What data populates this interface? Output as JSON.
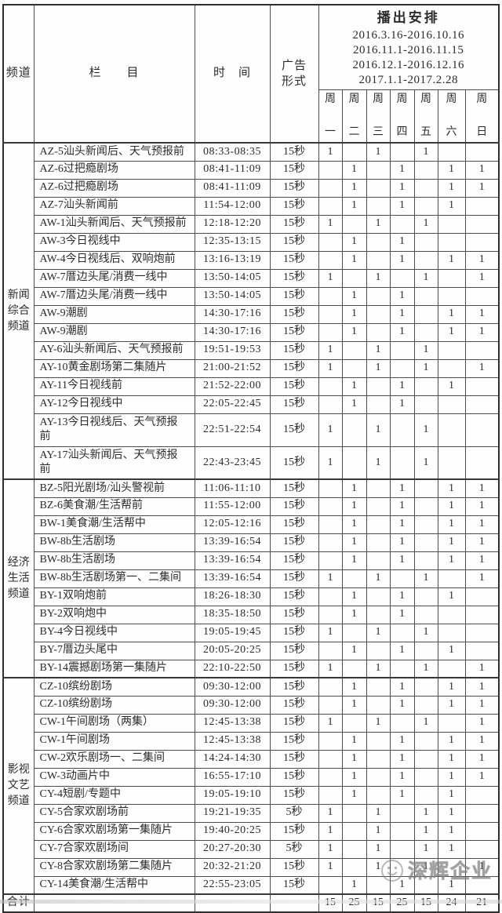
{
  "header": {
    "channel": "频道",
    "program": "栏　　目",
    "time": "时　间",
    "ad1": "广告",
    "ad2": "形式",
    "schedule_title": "播出安排",
    "dates": [
      "2016.3.16-2016.10.16",
      "2016.11.1-2016.11.15",
      "2016.12.1-2016.12.16",
      "2017.1.1-2017.2.28"
    ],
    "week_char": "周",
    "days": [
      "一",
      "二",
      "三",
      "四",
      "五",
      "六",
      "日"
    ]
  },
  "groups": [
    {
      "channel": "新闻综合频道",
      "rows": [
        {
          "program": "AZ-5汕头新闻后、天气预报前",
          "time": "08:33-08:35",
          "ad": "15秒",
          "days": [
            "1",
            "",
            "1",
            "",
            "1",
            "",
            ""
          ]
        },
        {
          "program": "AZ-6过把瘾剧场",
          "time": "08:41-11:09",
          "ad": "15秒",
          "days": [
            "",
            "1",
            "",
            "1",
            "",
            "1",
            "1"
          ]
        },
        {
          "program": "AZ-6过把瘾剧场",
          "time": "08:41-11:09",
          "ad": "15秒",
          "days": [
            "",
            "1",
            "",
            "1",
            "",
            "1",
            "1"
          ]
        },
        {
          "program": "AZ-7汕头新闻前",
          "time": "11:54-12:00",
          "ad": "15秒",
          "days": [
            "",
            "1",
            "",
            "1",
            "",
            "1",
            ""
          ]
        },
        {
          "program": "AW-1汕头新闻后、天气预报前",
          "time": "12:18-12:20",
          "ad": "15秒",
          "days": [
            "1",
            "",
            "1",
            "",
            "1",
            "",
            ""
          ]
        },
        {
          "program": "AW-3今日视线中",
          "time": "12:35-13:15",
          "ad": "15秒",
          "days": [
            "",
            "1",
            "",
            "1",
            "",
            "",
            ""
          ]
        },
        {
          "program": "AW-4今日视线后、双响炮前",
          "time": "13:16-13:19",
          "ad": "15秒",
          "days": [
            "",
            "1",
            "",
            "1",
            "",
            "1",
            "1"
          ]
        },
        {
          "program": "AW-7厝边头尾/消费一线中",
          "time": "13:50-14:05",
          "ad": "15秒",
          "days": [
            "1",
            "",
            "1",
            "",
            "1",
            "",
            "1"
          ]
        },
        {
          "program": "AW-7厝边头尾/消费一线中",
          "time": "13:50-14:05",
          "ad": "15秒",
          "days": [
            "",
            "1",
            "",
            "1",
            "",
            "",
            ""
          ]
        },
        {
          "program": "AW-9潮剧",
          "time": "14:30-17:16",
          "ad": "15秒",
          "days": [
            "",
            "1",
            "",
            "1",
            "",
            "1",
            "1"
          ]
        },
        {
          "program": "AW-9潮剧",
          "time": "14:30-17:16",
          "ad": "15秒",
          "days": [
            "",
            "1",
            "",
            "1",
            "",
            "1",
            "1"
          ]
        },
        {
          "program": "AY-6汕头新闻后、天气预报前",
          "time": "19:51-19:53",
          "ad": "15秒",
          "days": [
            "1",
            "",
            "1",
            "",
            "1",
            "",
            ""
          ]
        },
        {
          "program": "AY-10黄金剧场第二集随片",
          "time": "21:00-21:52",
          "ad": "15秒",
          "days": [
            "1",
            "",
            "1",
            "",
            "1",
            "",
            "1"
          ]
        },
        {
          "program": "AY-11今日视线前",
          "time": "21:52-22:00",
          "ad": "15秒",
          "days": [
            "",
            "1",
            "",
            "1",
            "",
            "1",
            ""
          ]
        },
        {
          "program": "AY-12今日视线中",
          "time": "22:05-22:45",
          "ad": "15秒",
          "days": [
            "",
            "1",
            "",
            "1",
            "",
            "",
            ""
          ]
        },
        {
          "program": "AY-13今日视线后、天气预报前",
          "time": "22:51-22:54",
          "ad": "15秒",
          "days": [
            "1",
            "",
            "1",
            "",
            "1",
            "",
            ""
          ],
          "tall": true
        },
        {
          "program": "AY-17汕头新闻后、天气预报前",
          "time": "22:43-23:45",
          "ad": "15秒",
          "days": [
            "1",
            "",
            "1",
            "",
            "1",
            "",
            ""
          ],
          "tall": true
        }
      ]
    },
    {
      "channel": "经济生活频道",
      "rows": [
        {
          "program": "BZ-5阳光剧场/汕头警视前",
          "time": "11:06-11:10",
          "ad": "15秒",
          "days": [
            "",
            "1",
            "",
            "1",
            "",
            "1",
            "1"
          ]
        },
        {
          "program": "BZ-6美食潮/生活帮前",
          "time": "11:55-12:00",
          "ad": "15秒",
          "days": [
            "",
            "1",
            "",
            "1",
            "",
            "1",
            "1"
          ]
        },
        {
          "program": "BW-1美食潮/生活帮中",
          "time": "12:05-12:16",
          "ad": "15秒",
          "days": [
            "",
            "1",
            "",
            "1",
            "",
            "1",
            "1"
          ]
        },
        {
          "program": "BW-8b生活剧场",
          "time": "13:39-16:54",
          "ad": "15秒",
          "days": [
            "",
            "1",
            "",
            "1",
            "",
            "1",
            "1"
          ]
        },
        {
          "program": "BW-8b生活剧场",
          "time": "13:39-16:54",
          "ad": "15秒",
          "days": [
            "",
            "1",
            "",
            "1",
            "",
            "1",
            "1"
          ]
        },
        {
          "program": "BW-8b生活剧场第一、二集间",
          "time": "13:39-16:54",
          "ad": "15秒",
          "days": [
            "1",
            "",
            "1",
            "",
            "1",
            "",
            "1"
          ]
        },
        {
          "program": "BY-1双响炮前",
          "time": "18:26-18:30",
          "ad": "15秒",
          "days": [
            "",
            "1",
            "",
            "1",
            "",
            "1",
            ""
          ]
        },
        {
          "program": "BY-2双响炮中",
          "time": "18:35-18:50",
          "ad": "15秒",
          "days": [
            "",
            "1",
            "",
            "1",
            "",
            "",
            ""
          ]
        },
        {
          "program": "BY-4今日视线中",
          "time": "19:05-19:45",
          "ad": "15秒",
          "days": [
            "1",
            "",
            "1",
            "",
            "1",
            "",
            ""
          ]
        },
        {
          "program": "BY-7厝边头尾中",
          "time": "20:05-20:25",
          "ad": "15秒",
          "days": [
            "",
            "1",
            "",
            "1",
            "",
            "1",
            ""
          ]
        },
        {
          "program": "BY-14震撼剧场第一集随片",
          "time": "22:10-22:50",
          "ad": "15秒",
          "days": [
            "1",
            "",
            "1",
            "",
            "1",
            "",
            "1"
          ]
        }
      ]
    },
    {
      "channel": "影视文艺频道",
      "rows": [
        {
          "program": "CZ-10缤纷剧场",
          "time": "09:30-12:00",
          "ad": "15秒",
          "days": [
            "",
            "1",
            "",
            "1",
            "",
            "1",
            "1"
          ]
        },
        {
          "program": "CZ-10缤纷剧场",
          "time": "09:30-12:00",
          "ad": "15秒",
          "days": [
            "",
            "1",
            "",
            "1",
            "",
            "1",
            "1"
          ]
        },
        {
          "program": "CW-1午间剧场（两集）",
          "time": "12:45-13:38",
          "ad": "15秒",
          "days": [
            "1",
            "",
            "1",
            "",
            "1",
            "",
            "1"
          ]
        },
        {
          "program": "CW-1午间剧场",
          "time": "12:45-13:38",
          "ad": "15秒",
          "days": [
            "",
            "1",
            "",
            "1",
            "",
            "1",
            "1"
          ]
        },
        {
          "program": "CW-2欢乐剧场一、二集间",
          "time": "14:24-14:30",
          "ad": "15秒",
          "days": [
            "",
            "1",
            "",
            "1",
            "",
            "1",
            "1"
          ]
        },
        {
          "program": "CW-3动画片中",
          "time": "16:55-17:10",
          "ad": "15秒",
          "days": [
            "",
            "1",
            "",
            "1",
            "",
            "1",
            "1"
          ]
        },
        {
          "program": "CY-4短剧/专题中",
          "time": "19:05-19:10",
          "ad": "15秒",
          "days": [
            "",
            "1",
            "",
            "1",
            "",
            "1",
            ""
          ]
        },
        {
          "program": "CY-5合家欢剧场前",
          "time": "19:21-19:35",
          "ad": "5秒",
          "days": [
            "1",
            "",
            "1",
            "",
            "1",
            "1",
            ""
          ]
        },
        {
          "program": "CY-6合家欢剧场第一集随片",
          "time": "19:40-20:25",
          "ad": "15秒",
          "days": [
            "1",
            "",
            "1",
            "",
            "1",
            "1",
            ""
          ]
        },
        {
          "program": "CY-7合家欢剧场间",
          "time": "20:27-20:30",
          "ad": "5秒",
          "days": [
            "1",
            "",
            "1",
            "",
            "1",
            "1",
            ""
          ]
        },
        {
          "program": "CY-8合家欢剧场第二集随片",
          "time": "20:32-21:20",
          "ad": "15秒",
          "days": [
            "1",
            "",
            "1",
            "",
            "1",
            "",
            "1"
          ]
        },
        {
          "program": "CY-14美食潮/生活帮中",
          "time": "22:55-23:05",
          "ad": "15秒",
          "days": [
            "",
            "1",
            "",
            "1",
            "",
            "1",
            ""
          ]
        }
      ]
    }
  ],
  "footer": {
    "label": "合计",
    "totals": [
      "15",
      "25",
      "15",
      "25",
      "15",
      "24",
      "21"
    ]
  },
  "watermark": {
    "text": "深辉企业"
  }
}
